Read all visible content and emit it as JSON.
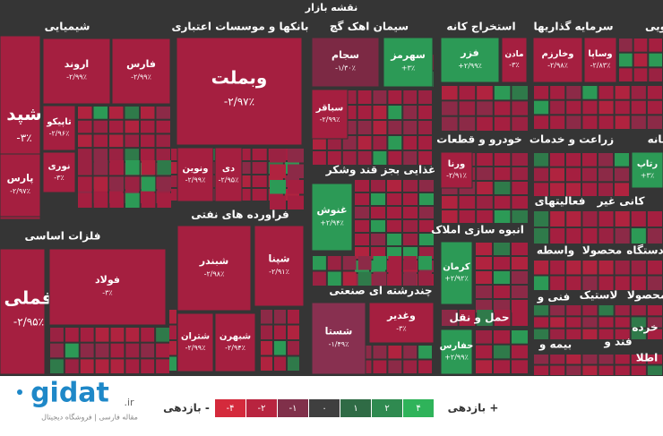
{
  "header": {
    "title": "نقشه بازار"
  },
  "sectors": [
    {
      "label": "شیمیایی"
    },
    {
      "label": "بانکها و موسسات اعتباری"
    },
    {
      "label": "سیمان اهک گچ"
    },
    {
      "label": "استخراج کانه"
    },
    {
      "label": "سرمایه گذاریها"
    },
    {
      "label": "ویی"
    },
    {
      "label": "فلزات اساسی"
    },
    {
      "label": "فراورده های نفتی"
    },
    {
      "label": "غذایی بجز قند وشکر"
    },
    {
      "label": "چندرشته ای صنعتی"
    },
    {
      "label": "خودرو و قطعات"
    },
    {
      "label": "انبوه سازی املاک"
    },
    {
      "label": "حمل و نقل"
    },
    {
      "label": "زراعت و خدمات"
    },
    {
      "label": "بانه"
    },
    {
      "label": "فعالیتهای"
    },
    {
      "label": "کانی غیر"
    },
    {
      "label": "واسطه"
    },
    {
      "label": "محصولا"
    },
    {
      "label": "دستگاه"
    },
    {
      "label": "فنی و"
    },
    {
      "label": "لاستیک"
    },
    {
      "label": "محصولا"
    },
    {
      "label": "بیمه و"
    },
    {
      "label": "فند و"
    },
    {
      "label": "خرده"
    },
    {
      "label": "اطلا"
    }
  ],
  "tiles": [
    {
      "symbol": "شپد",
      "change": "-۳٪",
      "color": "#a51f40"
    },
    {
      "symbol": "فارس",
      "change": "-۲/۹۹٪",
      "color": "#a51f40"
    },
    {
      "symbol": "اروند",
      "change": "-۲/۹۹٪",
      "color": "#a51f40"
    },
    {
      "symbol": "تاپیکو",
      "change": "-۲/۹۶٪",
      "color": "#a51f40"
    },
    {
      "symbol": "نوری",
      "change": "-۳٪",
      "color": "#a51f40"
    },
    {
      "symbol": "پارس",
      "change": "-۲/۹۷٪",
      "color": "#a51f40"
    },
    {
      "symbol": "فملی",
      "change": "-۲/۹۵٪",
      "color": "#a51f40"
    },
    {
      "symbol": "فولاد",
      "change": "-۳٪",
      "color": "#a51f40"
    },
    {
      "symbol": "وبملت",
      "change": "-۲/۹۷٪",
      "color": "#a51f40"
    },
    {
      "symbol": "ونوین",
      "change": "-۲/۹۹٪",
      "color": "#a51f40"
    },
    {
      "symbol": "دی",
      "change": "-۲/۹۵٪",
      "color": "#a51f40"
    },
    {
      "symbol": "شپنا",
      "change": "-۲/۹۱٪",
      "color": "#a51f40"
    },
    {
      "symbol": "شبندر",
      "change": "-۲/۹۸٪",
      "color": "#a51f40"
    },
    {
      "symbol": "شبهرن",
      "change": "-۲/۹۴٪",
      "color": "#a51f40"
    },
    {
      "symbol": "شتران",
      "change": "-۲/۹۹٪",
      "color": "#a51f40"
    },
    {
      "symbol": "سجام",
      "change": "-۱/۳۰٪",
      "color": "#7c2944"
    },
    {
      "symbol": "سهرمز",
      "change": "+۳٪",
      "color": "#2c9a56"
    },
    {
      "symbol": "سباقر",
      "change": "-۲/۹۹٪",
      "color": "#a51f40"
    },
    {
      "symbol": "غنوش",
      "change": "+۲/۹۴٪",
      "color": "#2c9a56"
    },
    {
      "symbol": "شستا",
      "change": "-۱/۴۹٪",
      "color": "#883050"
    },
    {
      "symbol": "وغدیر",
      "change": "-۳٪",
      "color": "#a51f40"
    },
    {
      "symbol": "فزر",
      "change": "+۲/۹۹٪",
      "color": "#2c9a56"
    },
    {
      "symbol": "مادن",
      "change": "-۳٪",
      "color": "#a51f40"
    },
    {
      "symbol": "ورنا",
      "change": "-۲/۹۱٪",
      "color": "#a51f40"
    },
    {
      "symbol": "کرمان",
      "change": "+۲/۹۲٪",
      "color": "#2c9a56"
    },
    {
      "symbol": "حفارس",
      "change": "+۲/۹۹٪",
      "color": "#2c9a56"
    },
    {
      "symbol": "وساپا",
      "change": "-۲/۸۳٪",
      "color": "#a51f40"
    },
    {
      "symbol": "وخارزم",
      "change": "-۲/۹۸٪",
      "color": "#a51f40"
    },
    {
      "symbol": "رتاپ",
      "change": "+۳٪",
      "color": "#2c9a56"
    }
  ],
  "legend": {
    "positive_label": "بازدهی +",
    "negative_label": "بازدهی -",
    "steps": [
      {
        "label": "-۴",
        "color": "#d42a3c"
      },
      {
        "label": "-۲",
        "color": "#b8243f"
      },
      {
        "label": "-۱",
        "color": "#80304a"
      },
      {
        "label": "۰",
        "color": "#3f3f3f"
      },
      {
        "label": "۱",
        "color": "#2f6b45"
      },
      {
        "label": "۲",
        "color": "#2f8a50"
      },
      {
        "label": "۴",
        "color": "#2fb35a"
      }
    ]
  },
  "watermark": {
    "brand": "gidat",
    "domain": ".ir",
    "tagline": "مقاله فارسی | فروشگاه دیجیتال"
  }
}
